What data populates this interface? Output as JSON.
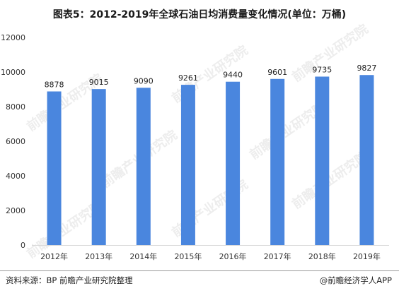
{
  "title": "图表5：2012-2019年全球石油日均消费量变化情况(单位：万桶)",
  "source": "资料来源：BP  前瞻产业研究院整理",
  "credit": "@前瞻经济学人APP",
  "watermark": "前瞻产业研究院",
  "colors": {
    "bar": "#4a86de",
    "axis": "#d9d9d9",
    "watermark": "#ededed"
  },
  "chart_data": {
    "type": "bar",
    "title": "图表5：2012-2019年全球石油日均消费量变化情况(单位：万桶)",
    "categories": [
      "2012年",
      "2013年",
      "2014年",
      "2015年",
      "2016年",
      "2017年",
      "2018年",
      "2019年"
    ],
    "values": [
      8878,
      9015,
      9090,
      9261,
      9440,
      9601,
      9735,
      9827
    ],
    "data_labels": [
      "8878",
      "9015",
      "9090",
      "9261",
      "9440",
      "9601",
      "9735",
      "9827"
    ],
    "ylim": [
      0,
      12000
    ],
    "yticks": [
      0,
      2000,
      4000,
      6000,
      8000,
      10000,
      12000
    ],
    "ytick_labels": [
      "0",
      "2000",
      "4000",
      "6000",
      "8000",
      "10000",
      "12000"
    ],
    "xlabel": "",
    "ylabel": "",
    "grid": false,
    "legend": "none"
  }
}
